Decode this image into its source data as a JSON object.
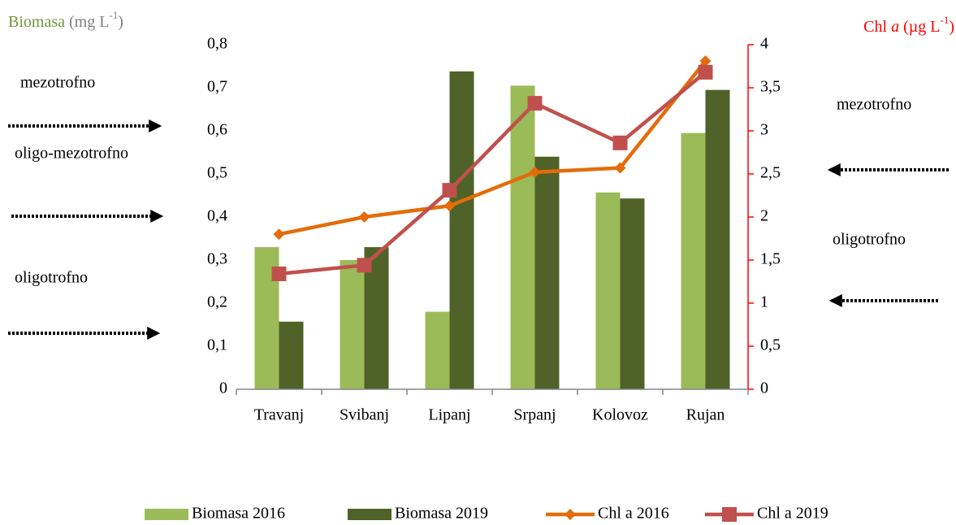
{
  "chart_data": {
    "type": "bar",
    "y_label_parts": [
      "Biomasa",
      " (mg L",
      "-1",
      ")"
    ],
    "y2_label_parts": [
      "Chl ",
      "a",
      " (µg L",
      "-1",
      ")"
    ],
    "categories": [
      "Travanj",
      "Svibanj",
      "Lipanj",
      "Srpanj",
      "Kolovoz",
      "Rujan"
    ],
    "series": [
      {
        "name": "Biomasa 2016",
        "type": "bar",
        "color": "#9bbb59",
        "values": [
          0.33,
          0.3,
          0.18,
          0.705,
          0.457,
          0.595
        ]
      },
      {
        "name": "Biomasa 2019",
        "type": "bar",
        "color": "#4f6228",
        "values": [
          0.157,
          0.33,
          0.738,
          0.54,
          0.443,
          0.695
        ]
      },
      {
        "name": "Chl a 2016",
        "type": "line",
        "axis": "y2",
        "marker": "diamond",
        "color": "#e46c0a",
        "values": [
          1.8,
          2.0,
          2.13,
          2.52,
          2.57,
          3.81
        ]
      },
      {
        "name": "Chl a 2019",
        "type": "line",
        "axis": "y2",
        "marker": "square",
        "color": "#c0504d",
        "values": [
          1.34,
          1.44,
          2.31,
          3.32,
          2.86,
          3.68
        ]
      }
    ],
    "ylim": [
      0,
      0.8
    ],
    "yticks": [
      0,
      {
        "value": 0.1,
        "label": "0,1"
      },
      {
        "value": 0.2,
        "label": "0,2"
      },
      {
        "value": 0.3,
        "label": "0,3"
      },
      {
        "value": 0.4,
        "label": "0,4"
      },
      {
        "value": 0.5,
        "label": "0,5"
      },
      {
        "value": 0.6,
        "label": "0,6"
      },
      {
        "value": 0.7,
        "label": "0,7"
      },
      {
        "value": 0.8,
        "label": "0,8"
      }
    ],
    "y2lim": [
      0,
      4
    ],
    "y2ticks": [
      0,
      {
        "value": 0.5,
        "label": "0,5"
      },
      1,
      {
        "value": 1.5,
        "label": "1,5"
      },
      2,
      {
        "value": 2.5,
        "label": "2,5"
      },
      3,
      {
        "value": 3.5,
        "label": "3,5"
      },
      4
    ],
    "y_axis_color": "#77933c",
    "y2_axis_color": "#ff0000",
    "annotations_left": [
      "mezotrofno",
      "oligo-mezotrofno",
      "oligotrofno"
    ],
    "annotations_right": [
      "mezotrofno",
      "oligotrofno"
    ],
    "legend": "bottom"
  }
}
